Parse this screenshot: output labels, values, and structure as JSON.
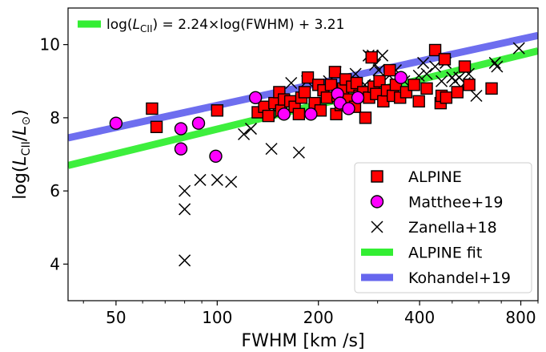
{
  "chart_data": {
    "type": "scatter",
    "xlabel": "FWHM [km /s]",
    "ylabel_parts": [
      "log(",
      "L",
      "CII",
      "/",
      "L",
      "⊙",
      ")"
    ],
    "x_scale": "log",
    "xlim": [
      36,
      900
    ],
    "ylim": [
      3.0,
      11.0
    ],
    "x_ticks": [
      50,
      100,
      200,
      400,
      800
    ],
    "x_tick_labels": [
      "50",
      "100",
      "200",
      "400",
      "800"
    ],
    "y_ticks": [
      4,
      6,
      8,
      10
    ],
    "y_tick_labels": [
      "4",
      "6",
      "8",
      "10"
    ],
    "grid": false,
    "legend_position": "lower-right",
    "annotation": {
      "prefix": "log(",
      "var": "L",
      "sub": "CII",
      "suffix": ") = 2.24×log(FWHM) + 3.21",
      "color": "#33ee33"
    },
    "series": [
      {
        "name": "ALPINE",
        "kind": "marker",
        "marker": "square",
        "color": "#ff0000",
        "points": [
          [
            64,
            8.25
          ],
          [
            66,
            7.75
          ],
          [
            100,
            8.2
          ],
          [
            132,
            8.15
          ],
          [
            138,
            8.3
          ],
          [
            142,
            8.05
          ],
          [
            148,
            8.4
          ],
          [
            153,
            8.7
          ],
          [
            155,
            8.2
          ],
          [
            158,
            8.5
          ],
          [
            165,
            8.45
          ],
          [
            170,
            8.3
          ],
          [
            175,
            8.1
          ],
          [
            178,
            8.55
          ],
          [
            182,
            8.7
          ],
          [
            186,
            9.1
          ],
          [
            195,
            8.4
          ],
          [
            200,
            8.9
          ],
          [
            203,
            8.2
          ],
          [
            207,
            8.75
          ],
          [
            212,
            8.55
          ],
          [
            218,
            8.9
          ],
          [
            224,
            9.25
          ],
          [
            226,
            8.1
          ],
          [
            228,
            8.6
          ],
          [
            233,
            8.35
          ],
          [
            237,
            8.8
          ],
          [
            241,
            9.05
          ],
          [
            246,
            8.5
          ],
          [
            252,
            8.85
          ],
          [
            257,
            8.3
          ],
          [
            260,
            8.95
          ],
          [
            265,
            8.6
          ],
          [
            272,
            8.7
          ],
          [
            276,
            8.0
          ],
          [
            283,
            8.55
          ],
          [
            288,
            9.65
          ],
          [
            292,
            8.85
          ],
          [
            297,
            8.65
          ],
          [
            304,
            9.0
          ],
          [
            312,
            8.45
          ],
          [
            320,
            8.75
          ],
          [
            326,
            9.3
          ],
          [
            333,
            8.6
          ],
          [
            340,
            8.9
          ],
          [
            350,
            8.55
          ],
          [
            365,
            8.7
          ],
          [
            385,
            8.9
          ],
          [
            398,
            8.45
          ],
          [
            420,
            8.8
          ],
          [
            445,
            9.85
          ],
          [
            462,
            8.4
          ],
          [
            465,
            8.6
          ],
          [
            475,
            9.6
          ],
          [
            480,
            8.55
          ],
          [
            518,
            8.7
          ],
          [
            545,
            9.4
          ],
          [
            562,
            8.9
          ],
          [
            655,
            8.8
          ]
        ]
      },
      {
        "name": "Matthee+19",
        "kind": "marker",
        "marker": "circle",
        "color": "#ff00ff",
        "points": [
          [
            50,
            7.85
          ],
          [
            78,
            7.7
          ],
          [
            78,
            7.15
          ],
          [
            88,
            7.85
          ],
          [
            99,
            6.95
          ],
          [
            130,
            8.55
          ],
          [
            158,
            8.1
          ],
          [
            190,
            8.1
          ],
          [
            228,
            8.65
          ],
          [
            232,
            8.4
          ],
          [
            246,
            8.25
          ],
          [
            262,
            8.55
          ],
          [
            352,
            9.1
          ]
        ]
      },
      {
        "name": "Zanella+18",
        "kind": "marker",
        "marker": "x",
        "color": "#000000",
        "points": [
          [
            80,
            4.1
          ],
          [
            80,
            5.5
          ],
          [
            80,
            6.0
          ],
          [
            89,
            6.3
          ],
          [
            100,
            6.3
          ],
          [
            110,
            6.25
          ],
          [
            120,
            7.55
          ],
          [
            126,
            7.7
          ],
          [
            145,
            7.15
          ],
          [
            152,
            8.1
          ],
          [
            166,
            8.95
          ],
          [
            175,
            7.05
          ],
          [
            185,
            9.0
          ],
          [
            215,
            9.0
          ],
          [
            225,
            9.25
          ],
          [
            240,
            8.7
          ],
          [
            258,
            9.2
          ],
          [
            275,
            8.9
          ],
          [
            282,
            9.7
          ],
          [
            290,
            9.7
          ],
          [
            295,
            9.45
          ],
          [
            302,
            9.3
          ],
          [
            310,
            9.7
          ],
          [
            325,
            9.15
          ],
          [
            340,
            9.3
          ],
          [
            360,
            9.0
          ],
          [
            398,
            9.15
          ],
          [
            410,
            9.5
          ],
          [
            420,
            9.2
          ],
          [
            445,
            9.4
          ],
          [
            465,
            9.0
          ],
          [
            478,
            9.5
          ],
          [
            500,
            9.1
          ],
          [
            510,
            9.0
          ],
          [
            525,
            9.1
          ],
          [
            545,
            8.95
          ],
          [
            560,
            9.2
          ],
          [
            590,
            8.6
          ],
          [
            670,
            9.5
          ],
          [
            680,
            9.4
          ],
          [
            790,
            9.9
          ]
        ]
      },
      {
        "name": "ALPINE fit",
        "kind": "line",
        "color": "#33ee33",
        "slope": 2.24,
        "intercept": 3.21,
        "x_range": [
          36,
          900
        ]
      },
      {
        "name": "Kohandel+19",
        "kind": "line",
        "color": "#6666ee",
        "points": [
          [
            36,
            7.45
          ],
          [
            900,
            10.25
          ]
        ]
      }
    ]
  }
}
